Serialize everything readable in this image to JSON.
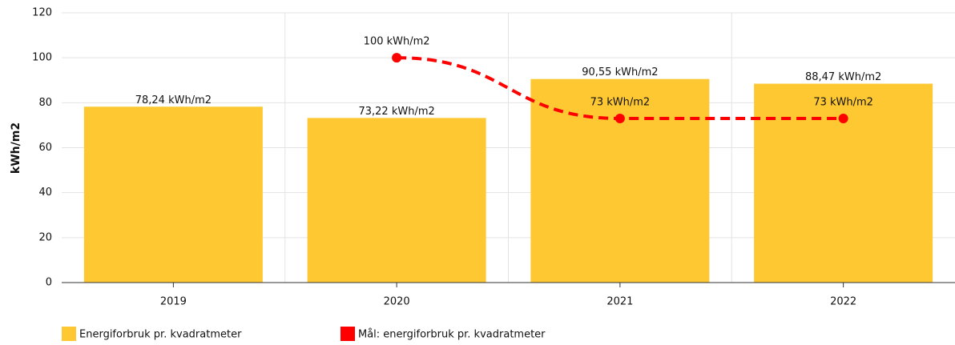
{
  "chart_data": {
    "type": "bar",
    "y_label": "kWh/m2",
    "categories": [
      "2019",
      "2020",
      "2021",
      "2022"
    ],
    "series": [
      {
        "name": "Energiforbruk pr. kvadratmeter",
        "type": "bar",
        "color": "#fec833",
        "values": [
          78.24,
          73.22,
          90.55,
          88.47
        ],
        "value_labels": [
          "78,24 kWh/m2",
          "73,22 kWh/m2",
          "90,55 kWh/m2",
          "88,47 kWh/m2"
        ]
      },
      {
        "name": "Mål: energiforbruk pr. kvadratmeter",
        "type": "line",
        "color": "#ff0000",
        "values": [
          null,
          100,
          73,
          73
        ],
        "value_labels": [
          null,
          "100 kWh/m2",
          "73 kWh/m2",
          "73 kWh/m2"
        ]
      }
    ],
    "ylim": [
      0,
      120
    ],
    "yticks": [
      0,
      20,
      40,
      60,
      80,
      100,
      120
    ],
    "grid": true,
    "legend": "bottom"
  }
}
